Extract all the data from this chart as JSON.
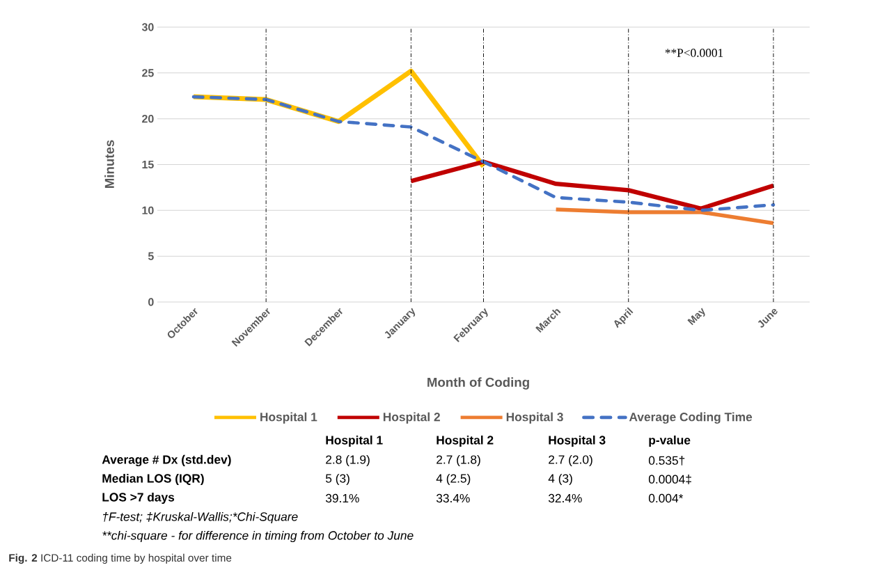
{
  "chart_data": {
    "type": "line",
    "ylabel": "Minutes",
    "xlabel": "Month of Coding",
    "categories": [
      "October",
      "November",
      "December",
      "January",
      "February",
      "March",
      "April",
      "May",
      "June"
    ],
    "series": [
      {
        "name": "Hospital 1",
        "color": "#ffc000",
        "values": [
          22.4,
          22.1,
          19.7,
          25.2,
          14.8,
          null,
          null,
          null,
          null
        ]
      },
      {
        "name": "Hospital 2",
        "color": "#c00000",
        "values": [
          null,
          null,
          null,
          13.2,
          15.3,
          12.9,
          12.2,
          10.2,
          12.7
        ]
      },
      {
        "name": "Hospital 3",
        "color": "#ed7d31",
        "values": [
          null,
          null,
          null,
          null,
          null,
          10.1,
          9.8,
          9.8,
          8.6
        ]
      },
      {
        "name": "Average Coding Time",
        "color": "#4472c4",
        "line_style": "dashed",
        "values": [
          22.4,
          22.1,
          19.7,
          19.1,
          15.3,
          11.4,
          10.9,
          10.0,
          10.6
        ]
      }
    ],
    "ylim": [
      0,
      30
    ],
    "yticks": [
      0,
      5,
      10,
      15,
      20,
      25,
      30
    ],
    "grid": "y",
    "legend": "bottom",
    "marker": "none",
    "ref_lines": [
      {
        "axis": "x",
        "value": "November",
        "color": "#000000",
        "line_style": "dashdot"
      },
      {
        "axis": "x",
        "value": "January",
        "color": "#000000",
        "line_style": "dashdot"
      },
      {
        "axis": "x",
        "value": "February",
        "color": "#000000",
        "line_style": "dashdot"
      },
      {
        "axis": "x",
        "value": "April",
        "color": "#000000",
        "line_style": "dashdot"
      },
      {
        "axis": "x",
        "value": "June",
        "color": "#000000",
        "line_style": "dashdot"
      }
    ],
    "annotations": [
      "**P<0.0001",
      "Hospital 1",
      "Hospital 2",
      "Hospital 3",
      "p-value",
      "Average # Dx (std.dev)",
      "2.8 (1.9)",
      "2.7 (1.8)",
      "2.7 (2.0)",
      "0.535†",
      "Median LOS (IQR)",
      "5 (3)",
      "4 (2.5)",
      "4 (3)",
      "0.0004‡",
      "LOS >7 days",
      "39.1%",
      "33.4%",
      "32.4%",
      "0.004*",
      "†F-test; ‡Kruskal-Wallis;*Chi-Square",
      "**chi-square - for difference in timing from October to June",
      "**Fig. 2** ICD-11 coding time by hospital over time"
    ]
  }
}
